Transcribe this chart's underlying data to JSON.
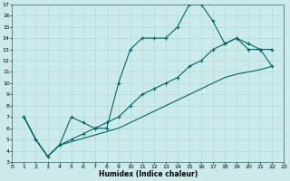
{
  "xlabel": "Humidex (Indice chaleur)",
  "bg_color": "#cceaea",
  "line_color": "#006666",
  "grid_color": "#aadddd",
  "xlim": [
    0,
    23
  ],
  "ylim": [
    3,
    17
  ],
  "xticks": [
    0,
    1,
    2,
    3,
    4,
    5,
    6,
    7,
    8,
    9,
    10,
    11,
    12,
    13,
    14,
    15,
    16,
    17,
    18,
    19,
    20,
    21,
    22,
    23
  ],
  "yticks": [
    3,
    4,
    5,
    6,
    7,
    8,
    9,
    10,
    11,
    12,
    13,
    14,
    15,
    16,
    17
  ],
  "series1_x": [
    1,
    2,
    3,
    4,
    5,
    6,
    7,
    8,
    9,
    10,
    11,
    12,
    13,
    14,
    15,
    16,
    17,
    18,
    19,
    20,
    21,
    22
  ],
  "series1_y": [
    7,
    5,
    3.5,
    4.5,
    7,
    6.5,
    6,
    6,
    10,
    13,
    14,
    14,
    14,
    15,
    17,
    17,
    15.5,
    13.5,
    14,
    13,
    13,
    13
  ],
  "series2_x": [
    1,
    2,
    3,
    4,
    5,
    6,
    7,
    8,
    9,
    10,
    11,
    12,
    13,
    14,
    15,
    16,
    17,
    18,
    19,
    20,
    21,
    22
  ],
  "series2_y": [
    7,
    5,
    3.5,
    4.5,
    5.0,
    5.5,
    6.0,
    6.5,
    7.0,
    8.0,
    9.0,
    9.5,
    10.0,
    10.5,
    11.5,
    12.0,
    13.0,
    13.5,
    14.0,
    13.5,
    13.0,
    11.5
  ],
  "series3_x": [
    1,
    2,
    3,
    4,
    5,
    6,
    7,
    8,
    9,
    10,
    11,
    12,
    13,
    14,
    15,
    16,
    17,
    18,
    19,
    20,
    21,
    22
  ],
  "series3_y": [
    7,
    5,
    3.5,
    4.5,
    4.8,
    5.1,
    5.4,
    5.7,
    6.0,
    6.5,
    7.0,
    7.5,
    8.0,
    8.5,
    9.0,
    9.5,
    10.0,
    10.5,
    10.8,
    11.0,
    11.2,
    11.5
  ]
}
